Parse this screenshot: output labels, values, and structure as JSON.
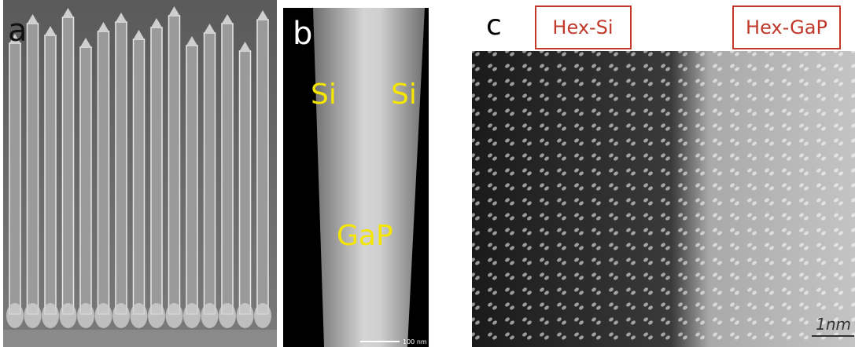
{
  "panels": [
    {
      "label": "a"
    },
    {
      "label": "b",
      "annotations": [
        "Si",
        "Si",
        "GaP"
      ],
      "scale_bar": "100 nm"
    },
    {
      "label": "c",
      "regions": [
        "Hex-Si",
        "Hex-GaP"
      ],
      "scale_bar": "1nm"
    }
  ]
}
